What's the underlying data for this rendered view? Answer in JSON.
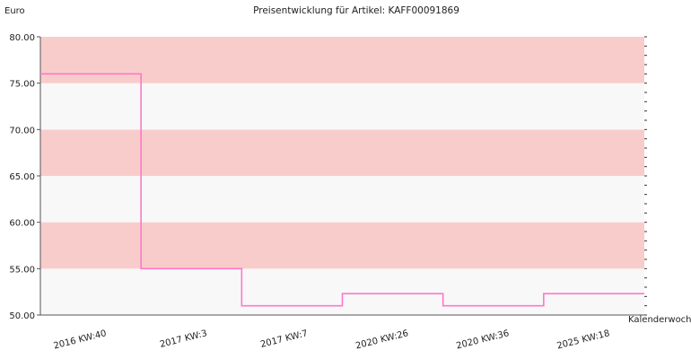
{
  "chart_data": {
    "type": "line",
    "step": true,
    "title": "Preisentwicklung für Artikel: KAFF00091869",
    "ylabel": "Euro",
    "xlabel": "Kalenderwoche",
    "ylim": [
      50,
      80
    ],
    "yticks": [
      "50.00",
      "55.00",
      "60.00",
      "65.00",
      "70.00",
      "75.00",
      "80.00"
    ],
    "x": [
      "2016 KW:40",
      "2017 KW:3",
      "2017 KW:7",
      "2020 KW:26",
      "2020 KW:36",
      "2025 KW:18"
    ],
    "series": [
      {
        "values": [
          76,
          55,
          51,
          52.3,
          51,
          52.3
        ]
      }
    ],
    "band_colors": [
      "#f8f8f8",
      "#f9cccc"
    ],
    "line_color": "#ff77c8"
  }
}
